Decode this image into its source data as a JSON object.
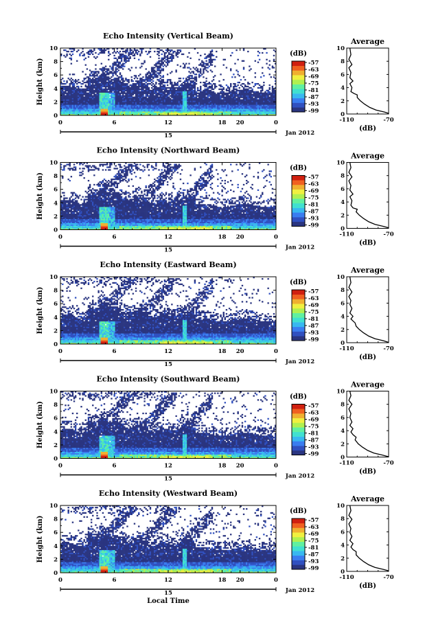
{
  "figure": {
    "xlabel": "Local Time",
    "month_label": "Jan 2012",
    "date_label": "15",
    "avg_title": "Average",
    "avg_xlabel": "(dB)",
    "cb_title": "(dB)",
    "ylabel": "Height (km)",
    "colors": [
      "#2a3580",
      "#3050c0",
      "#3a7df0",
      "#38b8f0",
      "#40e0d0",
      "#60f0a0",
      "#b0f050",
      "#f0f040",
      "#f0b030",
      "#f06020",
      "#d02010"
    ]
  },
  "chart_data": [
    {
      "type": "heatmap",
      "title": "Echo Intensity (Vertical Beam)",
      "ylabel": "Height (km)",
      "xlabel": "",
      "xlim": [
        0,
        24
      ],
      "ylim": [
        0,
        10
      ],
      "xticks": [
        "0",
        "6",
        "12",
        "18",
        "20",
        "0"
      ],
      "xtick_values": [
        0,
        6,
        12,
        18,
        20,
        24
      ],
      "yticks": [
        "0",
        "2",
        "4",
        "6",
        "8",
        "10"
      ],
      "colorbar": {
        "ticks": [
          "-57",
          "-63",
          "-69",
          "-75",
          "-81",
          "-87",
          "-93",
          "-99"
        ],
        "range": [
          -99,
          -57
        ]
      },
      "average": {
        "xlim": [
          -110,
          -70
        ],
        "xticks": [
          "-110",
          "-70"
        ],
        "yticks": [
          "0",
          "2",
          "4",
          "6",
          "8",
          "10"
        ],
        "profile": [
          [
            -68,
            0
          ],
          [
            -74,
            0.3
          ],
          [
            -82,
            0.6
          ],
          [
            -88,
            1
          ],
          [
            -93,
            1.5
          ],
          [
            -97,
            2
          ],
          [
            -100,
            2.5
          ],
          [
            -100,
            2.9
          ],
          [
            -103,
            3.1
          ],
          [
            -106,
            3.4
          ],
          [
            -105,
            4
          ],
          [
            -107,
            4.6
          ],
          [
            -104,
            5
          ],
          [
            -107,
            5.5
          ],
          [
            -106,
            6.3
          ],
          [
            -108,
            7
          ],
          [
            -105,
            7.5
          ],
          [
            -108,
            8.3
          ],
          [
            -106,
            9
          ],
          [
            -107,
            10
          ]
        ]
      }
    },
    {
      "type": "heatmap",
      "title": "Echo Intensity (Northward Beam)",
      "ylabel": "Height (km)",
      "xlabel": "",
      "xlim": [
        0,
        24
      ],
      "ylim": [
        0,
        10
      ],
      "xticks": [
        "0",
        "6",
        "12",
        "18",
        "20",
        "0"
      ],
      "xtick_values": [
        0,
        6,
        12,
        18,
        20,
        24
      ],
      "yticks": [
        "0",
        "2",
        "4",
        "6",
        "8",
        "10"
      ],
      "colorbar": {
        "ticks": [
          "-57",
          "-63",
          "-69",
          "-75",
          "-81",
          "-87",
          "-93",
          "-99"
        ],
        "range": [
          -99,
          -57
        ]
      },
      "average": {
        "xlim": [
          -110,
          -70
        ],
        "xticks": [
          "-110",
          "-70"
        ],
        "yticks": [
          "0",
          "2",
          "4",
          "6",
          "8",
          "10"
        ],
        "profile": [
          [
            -68,
            0
          ],
          [
            -75,
            0.3
          ],
          [
            -83,
            0.6
          ],
          [
            -89,
            1
          ],
          [
            -94,
            1.5
          ],
          [
            -98,
            2
          ],
          [
            -101,
            2.5
          ],
          [
            -100,
            2.9
          ],
          [
            -104,
            3.1
          ],
          [
            -106,
            3.5
          ],
          [
            -105,
            4.2
          ],
          [
            -107,
            4.8
          ],
          [
            -104,
            5.2
          ],
          [
            -107,
            5.8
          ],
          [
            -106,
            6.5
          ],
          [
            -108,
            7.2
          ],
          [
            -105,
            7.8
          ],
          [
            -108,
            8.5
          ],
          [
            -106,
            9.2
          ],
          [
            -107,
            10
          ]
        ]
      }
    },
    {
      "type": "heatmap",
      "title": "Echo Intensity (Eastward Beam)",
      "ylabel": "Height (km)",
      "xlabel": "",
      "xlim": [
        0,
        24
      ],
      "ylim": [
        0,
        10
      ],
      "xticks": [
        "0",
        "6",
        "12",
        "18",
        "20",
        "0"
      ],
      "xtick_values": [
        0,
        6,
        12,
        18,
        20,
        24
      ],
      "yticks": [
        "0",
        "2",
        "4",
        "6",
        "8",
        "10"
      ],
      "colorbar": {
        "ticks": [
          "-57",
          "-63",
          "-69",
          "-75",
          "-81",
          "-87",
          "-93",
          "-99"
        ],
        "range": [
          -99,
          -57
        ]
      },
      "average": {
        "xlim": [
          -110,
          -70
        ],
        "xticks": [
          "-110",
          "-70"
        ],
        "yticks": [
          "0",
          "2",
          "4",
          "6",
          "8",
          "10"
        ],
        "profile": [
          [
            -69,
            0
          ],
          [
            -75,
            0.3
          ],
          [
            -83,
            0.6
          ],
          [
            -89,
            1
          ],
          [
            -94,
            1.5
          ],
          [
            -98,
            2
          ],
          [
            -101,
            2.5
          ],
          [
            -102,
            3
          ],
          [
            -104,
            3.3
          ],
          [
            -106,
            3.6
          ],
          [
            -104,
            4
          ],
          [
            -107,
            4.5
          ],
          [
            -105,
            5.2
          ],
          [
            -107,
            5.8
          ],
          [
            -106,
            6.4
          ],
          [
            -108,
            7
          ],
          [
            -105,
            7.7
          ],
          [
            -108,
            8.4
          ],
          [
            -106,
            9.1
          ],
          [
            -107,
            10
          ]
        ]
      }
    },
    {
      "type": "heatmap",
      "title": "Echo Intensity (Southward Beam)",
      "ylabel": "Height (km)",
      "xlabel": "",
      "xlim": [
        0,
        24
      ],
      "ylim": [
        0,
        10
      ],
      "xticks": [
        "0",
        "6",
        "12",
        "18",
        "20",
        "0"
      ],
      "xtick_values": [
        0,
        6,
        12,
        18,
        20,
        24
      ],
      "yticks": [
        "0",
        "2",
        "4",
        "6",
        "8",
        "10"
      ],
      "colorbar": {
        "ticks": [
          "-57",
          "-63",
          "-69",
          "-75",
          "-81",
          "-87",
          "-93",
          "-99"
        ],
        "range": [
          -99,
          -57
        ]
      },
      "average": {
        "xlim": [
          -110,
          -70
        ],
        "xticks": [
          "-110",
          "-70"
        ],
        "yticks": [
          "0",
          "2",
          "4",
          "6",
          "8",
          "10"
        ],
        "profile": [
          [
            -69,
            0
          ],
          [
            -76,
            0.3
          ],
          [
            -84,
            0.6
          ],
          [
            -90,
            1
          ],
          [
            -95,
            1.5
          ],
          [
            -99,
            2
          ],
          [
            -102,
            2.6
          ],
          [
            -101,
            3
          ],
          [
            -104,
            3.4
          ],
          [
            -106,
            3.8
          ],
          [
            -104,
            4.3
          ],
          [
            -107,
            4.8
          ],
          [
            -105,
            5.3
          ],
          [
            -107,
            6
          ],
          [
            -106,
            6.6
          ],
          [
            -108,
            7.3
          ],
          [
            -105,
            8
          ],
          [
            -108,
            8.6
          ],
          [
            -106,
            9.3
          ],
          [
            -107,
            10
          ]
        ]
      }
    },
    {
      "type": "heatmap",
      "title": "Echo Intensity (Westward Beam)",
      "ylabel": "Height (km)",
      "xlabel": "Local Time",
      "xlim": [
        0,
        24
      ],
      "ylim": [
        0,
        10
      ],
      "xticks": [
        "0",
        "6",
        "12",
        "18",
        "20",
        "0"
      ],
      "xtick_values": [
        0,
        6,
        12,
        18,
        20,
        24
      ],
      "yticks": [
        "0",
        "2",
        "4",
        "6",
        "8",
        "10"
      ],
      "colorbar": {
        "ticks": [
          "-57",
          "-63",
          "-69",
          "-75",
          "-81",
          "-87",
          "-93",
          "-99"
        ],
        "range": [
          -99,
          -57
        ]
      },
      "average": {
        "xlim": [
          -110,
          -70
        ],
        "xticks": [
          "-110",
          "-70"
        ],
        "yticks": [
          "0",
          "2",
          "4",
          "6",
          "8",
          "10"
        ],
        "profile": [
          [
            -68,
            0
          ],
          [
            -75,
            0.3
          ],
          [
            -83,
            0.6
          ],
          [
            -89,
            1
          ],
          [
            -94,
            1.5
          ],
          [
            -98,
            2
          ],
          [
            -101,
            2.5
          ],
          [
            -101,
            3
          ],
          [
            -104,
            3.3
          ],
          [
            -106,
            3.7
          ],
          [
            -104,
            4.2
          ],
          [
            -107,
            4.7
          ],
          [
            -105,
            5.3
          ],
          [
            -107,
            5.9
          ],
          [
            -106,
            6.5
          ],
          [
            -108,
            7.2
          ],
          [
            -105,
            7.9
          ],
          [
            -108,
            8.5
          ],
          [
            -106,
            9.2
          ],
          [
            -107,
            10
          ]
        ]
      }
    }
  ]
}
